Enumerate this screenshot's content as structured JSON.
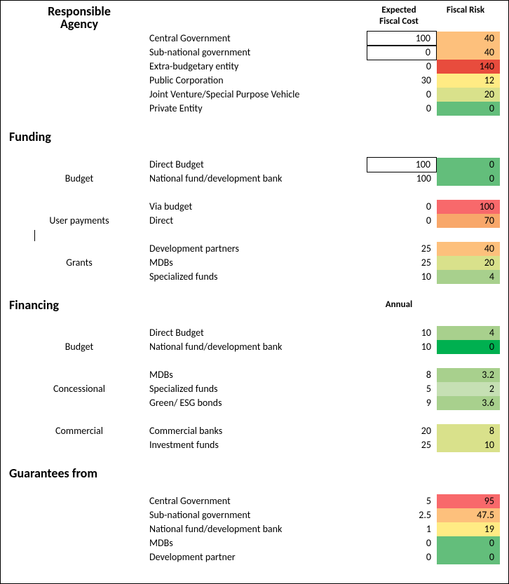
{
  "colors": {
    "green_dark": "#00b050",
    "green_mid": "#63be7b",
    "green_light": "#a8d08d",
    "green_veryLight": "#c6e0b4",
    "yellow_green": "#d9e18b",
    "yellow": "#ffeb84",
    "orange_light": "#fdc07c",
    "orange": "#f8a76a",
    "red_orange": "#f8696b",
    "red": "#e84c3d"
  },
  "headers": {
    "expected": "Expected\nFiscal Cost",
    "risk": "Fiscal Risk",
    "annual": "Annual"
  },
  "sections": [
    {
      "title": "Responsible\nAgency",
      "groups": [
        {
          "label": "",
          "rows": [
            {
              "name": "Central Government",
              "cost": "100",
              "cost_box": true,
              "risk": "40",
              "risk_color": "#fdc07c"
            },
            {
              "name": "Sub-national government",
              "cost": "0",
              "cost_box": true,
              "risk": "40",
              "risk_color": "#fdc07c"
            },
            {
              "name": "Extra-budgetary entity",
              "cost": "0",
              "cost_box": false,
              "risk": "140",
              "risk_color": "#e84c3d"
            },
            {
              "name": "Public Corporation",
              "cost": "30",
              "cost_box": false,
              "risk": "12",
              "risk_color": "#ffeb84"
            },
            {
              "name": "Joint Venture/Special Purpose Vehicle",
              "cost": "0",
              "cost_box": false,
              "risk": "20",
              "risk_color": "#d9e18b"
            },
            {
              "name": "Private Entity",
              "cost": "0",
              "cost_box": false,
              "risk": "0",
              "risk_color": "#63be7b"
            }
          ]
        }
      ]
    },
    {
      "title": "Funding",
      "groups": [
        {
          "label": "Budget",
          "label_row_offset": 1,
          "rows": [
            {
              "name": "Direct Budget",
              "cost": "100",
              "cost_box": true,
              "risk": "0",
              "risk_color": "#63be7b"
            },
            {
              "name": "National fund/development bank",
              "cost": "100",
              "cost_box": false,
              "risk": "0",
              "risk_color": "#63be7b"
            }
          ]
        },
        {
          "label": "User payments",
          "label_row_offset": 1,
          "show_cursor_after": true,
          "rows": [
            {
              "name": "Via budget",
              "cost": "0",
              "risk": "100",
              "risk_color": "#f8696b"
            },
            {
              "name": "Direct",
              "cost": "0",
              "risk": "70",
              "risk_color": "#f8a76a"
            }
          ]
        },
        {
          "label": "Grants",
          "label_row_offset": 1,
          "rows": [
            {
              "name": "Development partners",
              "cost": "25",
              "risk": "40",
              "risk_color": "#fdc07c"
            },
            {
              "name": "MDBs",
              "cost": "25",
              "risk": "20",
              "risk_color": "#d9e18b"
            },
            {
              "name": "Specialized funds",
              "cost": "10",
              "risk": "4",
              "risk_color": "#a8d08d"
            }
          ]
        }
      ]
    },
    {
      "title": "Financing",
      "show_annual": true,
      "groups": [
        {
          "label": "Budget",
          "label_row_offset": 1,
          "rows": [
            {
              "name": "Direct Budget",
              "cost": "10",
              "risk": "4",
              "risk_color": "#a8d08d"
            },
            {
              "name": "National fund/development bank",
              "cost": "10",
              "risk": "0",
              "risk_color": "#00b050"
            }
          ]
        },
        {
          "label": "Concessional",
          "label_row_offset": 1,
          "rows": [
            {
              "name": "MDBs",
              "cost": "8",
              "risk": "3.2",
              "risk_color": "#a8d08d"
            },
            {
              "name": "Specialized funds",
              "cost": "5",
              "risk": "2",
              "risk_color": "#c6e0b4"
            },
            {
              "name": "Green/ ESG bonds",
              "cost": "9",
              "risk": "3.6",
              "risk_color": "#a8d08d"
            }
          ]
        },
        {
          "label": "Commercial",
          "label_row_offset": 0,
          "rows": [
            {
              "name": "Commercial banks",
              "cost": "20",
              "risk": "8",
              "risk_color": "#d9e18b"
            },
            {
              "name": "Investment funds",
              "cost": "25",
              "risk": "10",
              "risk_color": "#d9e18b"
            }
          ]
        }
      ]
    },
    {
      "title": "Guarantees from",
      "groups": [
        {
          "label": "",
          "rows": [
            {
              "name": "Central Government",
              "cost": "5",
              "risk": "95",
              "risk_color": "#f8696b"
            },
            {
              "name": "Sub-national government",
              "cost": "2.5",
              "risk": "47.5",
              "risk_color": "#fdc07c"
            },
            {
              "name": "National fund/development bank",
              "cost": "1",
              "risk": "19",
              "risk_color": "#ffeb84"
            },
            {
              "name": "MDBs",
              "cost": "0",
              "risk": "0",
              "risk_color": "#63be7b"
            },
            {
              "name": "Development partner",
              "cost": "0",
              "risk": "0",
              "risk_color": "#63be7b"
            }
          ]
        }
      ]
    }
  ]
}
